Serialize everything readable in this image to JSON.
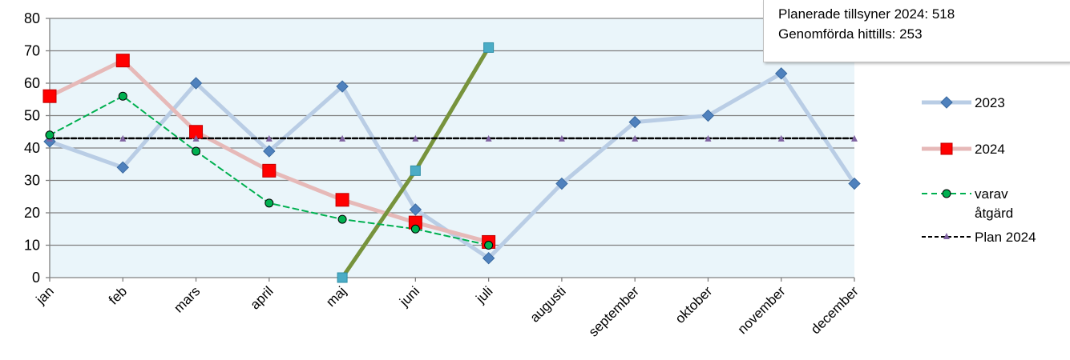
{
  "chart_data": {
    "type": "line",
    "title": "",
    "xlabel": "",
    "ylabel": "",
    "ylim": [
      0,
      80
    ],
    "yticks": [
      0,
      10,
      20,
      30,
      40,
      50,
      60,
      70,
      80
    ],
    "categories": [
      "jan",
      "feb",
      "mars",
      "april",
      "maj",
      "juni",
      "juli",
      "augusti",
      "september",
      "oktober",
      "november",
      "december"
    ],
    "grid": "horizontal",
    "legend_position": "right",
    "series": [
      {
        "name": "2023",
        "values": [
          42,
          34,
          60,
          39,
          59,
          21,
          6,
          29,
          48,
          50,
          63,
          29
        ],
        "color": "#4f81bd",
        "line_color": "#b9cde5",
        "marker": "diamond",
        "style": "solid"
      },
      {
        "name": "2024",
        "values": [
          56,
          67,
          45,
          33,
          24,
          17,
          11,
          null,
          null,
          null,
          null,
          null
        ],
        "color": "#ff0000",
        "line_color": "#e6b9b8",
        "marker": "square",
        "style": "solid"
      },
      {
        "name": "varav åtgärd",
        "values": [
          44,
          56,
          39,
          23,
          18,
          15,
          10,
          null,
          null,
          null,
          null,
          null
        ],
        "color": "#00b050",
        "marker": "circle",
        "style": "dashed"
      },
      {
        "name": "Plan 2024",
        "values": [
          43,
          43,
          43,
          43,
          43,
          43,
          43,
          43,
          43,
          43,
          43,
          43
        ],
        "color": "#000000",
        "marker_color": "#8064a2",
        "marker": "triangle",
        "style": "dashed"
      },
      {
        "name": "",
        "values": [
          null,
          null,
          null,
          null,
          0,
          33,
          71,
          null,
          null,
          null,
          null,
          null
        ],
        "color": "#77933c",
        "marker_color": "#4bacc6",
        "marker": "square",
        "style": "solid"
      }
    ]
  },
  "info": {
    "line1": "Planerade tillsyner 2024: 518",
    "line2": "Genomförda hittills: 253"
  },
  "legend": {
    "s2023": "2023",
    "s2024": "2024",
    "varav_line1": "varav",
    "varav_line2": "åtgärd",
    "plan": "Plan 2024"
  }
}
